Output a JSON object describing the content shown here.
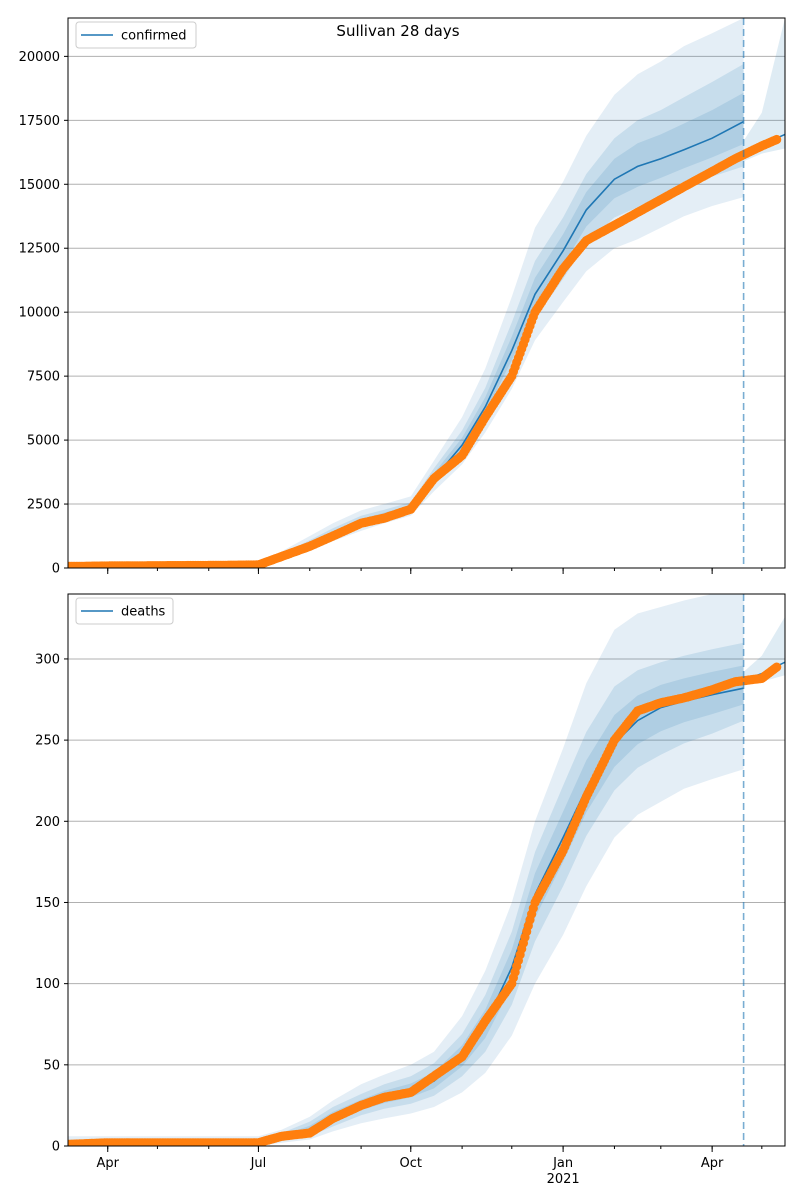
{
  "figure": {
    "title": "Sullivan 28 days"
  },
  "colors": {
    "model_line": "#1f77b4",
    "observed": "#ff7f0e",
    "band": "#1f77b4",
    "grid": "#b0b0b0",
    "forecast_marker": "#1f77b4"
  },
  "x_axis": {
    "tick_labels": [
      "Apr",
      "Jul",
      "Oct",
      "Jan",
      "Apr"
    ],
    "tick_dates": [
      "2020-04-01",
      "2020-07-01",
      "2020-10-01",
      "2021-01-01",
      "2021-04-01"
    ],
    "year_label": "2021",
    "range": [
      "2020-03-08",
      "2021-05-15"
    ],
    "forecast_date": "2021-04-20"
  },
  "chart_data": [
    {
      "type": "line",
      "legend": "confirmed",
      "legend_position": "top-left",
      "ylim": [
        0,
        21500
      ],
      "yticks": [
        0,
        2500,
        5000,
        7500,
        10000,
        12500,
        15000,
        17500,
        20000
      ],
      "grid": "horizontal",
      "model": {
        "name": "confirmed",
        "x": [
          "2020-03-08",
          "2020-04-01",
          "2020-05-01",
          "2020-06-01",
          "2020-07-01",
          "2020-07-15",
          "2020-08-01",
          "2020-08-15",
          "2020-09-01",
          "2020-09-15",
          "2020-10-01",
          "2020-10-15",
          "2020-11-01",
          "2020-11-15",
          "2020-12-01",
          "2020-12-15",
          "2021-01-01",
          "2021-01-15",
          "2021-02-01",
          "2021-02-15",
          "2021-03-01",
          "2021-03-15",
          "2021-04-01",
          "2021-04-20"
        ],
        "y": [
          80,
          80,
          90,
          100,
          130,
          450,
          900,
          1350,
          1800,
          2050,
          2350,
          3500,
          4800,
          6300,
          8500,
          10700,
          12400,
          14000,
          15200,
          15700,
          16000,
          16350,
          16800,
          17450
        ]
      },
      "bands": {
        "x": [
          "2020-03-08",
          "2020-07-01",
          "2020-07-15",
          "2020-08-01",
          "2020-08-15",
          "2020-09-01",
          "2020-09-15",
          "2020-10-01",
          "2020-10-15",
          "2020-11-01",
          "2020-11-15",
          "2020-12-01",
          "2020-12-15",
          "2021-01-01",
          "2021-01-15",
          "2021-02-01",
          "2021-02-15",
          "2021-03-01",
          "2021-03-15",
          "2021-04-01",
          "2021-04-20"
        ],
        "outer_low": [
          40,
          80,
          300,
          650,
          1050,
          1450,
          1750,
          2050,
          3000,
          4050,
          5300,
          7000,
          8900,
          10400,
          11600,
          12500,
          12850,
          13300,
          13750,
          14150,
          14500
        ],
        "outer_high": [
          140,
          190,
          650,
          1250,
          1750,
          2250,
          2500,
          2800,
          4200,
          5900,
          7800,
          10600,
          13300,
          15100,
          16900,
          18500,
          19300,
          19800,
          20400,
          20900,
          21500
        ],
        "inner_low": [
          60,
          110,
          380,
          790,
          1210,
          1630,
          1900,
          2200,
          3250,
          4420,
          5800,
          7750,
          9750,
          11300,
          12700,
          13700,
          14100,
          14500,
          14900,
          15300,
          15700
        ],
        "inner_high": [
          110,
          160,
          560,
          1090,
          1550,
          2040,
          2280,
          2570,
          3900,
          5380,
          7050,
          9600,
          12000,
          13700,
          15400,
          16800,
          17500,
          17900,
          18400,
          19000,
          19700
        ]
      },
      "post_forecast": {
        "x": [
          "2021-04-20",
          "2021-05-01",
          "2021-05-15"
        ],
        "y": [
          16250,
          16550,
          16950
        ],
        "low": [
          15900,
          16200,
          16400
        ],
        "high": [
          16700,
          17800,
          21500
        ]
      },
      "observed": {
        "name": "observed",
        "x": [
          "2020-03-08",
          "2020-04-01",
          "2020-05-01",
          "2020-06-01",
          "2020-07-01",
          "2020-07-15",
          "2020-08-01",
          "2020-08-15",
          "2020-09-01",
          "2020-09-15",
          "2020-10-01",
          "2020-10-15",
          "2020-11-01",
          "2020-11-15",
          "2020-12-01",
          "2020-12-15",
          "2021-01-01",
          "2021-01-15",
          "2021-02-01",
          "2021-02-15",
          "2021-03-01",
          "2021-03-15",
          "2021-04-01",
          "2021-04-15",
          "2021-05-01",
          "2021-05-10"
        ],
        "y": [
          60,
          80,
          90,
          100,
          120,
          450,
          850,
          1250,
          1750,
          1950,
          2300,
          3500,
          4400,
          5900,
          7500,
          10000,
          11700,
          12800,
          13400,
          13900,
          14400,
          14900,
          15500,
          16000,
          16500,
          16750
        ]
      }
    },
    {
      "type": "line",
      "legend": "deaths",
      "legend_position": "top-left",
      "ylim": [
        0,
        340
      ],
      "yticks": [
        0,
        50,
        100,
        150,
        200,
        250,
        300
      ],
      "grid": "horizontal",
      "model": {
        "name": "deaths",
        "x": [
          "2020-03-08",
          "2020-04-01",
          "2020-05-01",
          "2020-06-01",
          "2020-07-01",
          "2020-07-15",
          "2020-08-01",
          "2020-08-15",
          "2020-09-01",
          "2020-09-15",
          "2020-10-01",
          "2020-10-15",
          "2020-11-01",
          "2020-11-15",
          "2020-12-01",
          "2020-12-15",
          "2021-01-01",
          "2021-01-15",
          "2021-02-01",
          "2021-02-15",
          "2021-03-01",
          "2021-03-15",
          "2021-04-01",
          "2021-04-20"
        ],
        "y": [
          2,
          2,
          2,
          2,
          3,
          5,
          10,
          18,
          25,
          30,
          34,
          40,
          55,
          75,
          110,
          155,
          190,
          220,
          248,
          262,
          270,
          274,
          278,
          282
        ]
      },
      "bands": {
        "x": [
          "2020-03-08",
          "2020-07-01",
          "2020-07-15",
          "2020-08-01",
          "2020-08-15",
          "2020-09-01",
          "2020-09-15",
          "2020-10-01",
          "2020-10-15",
          "2020-11-01",
          "2020-11-15",
          "2020-12-01",
          "2020-12-15",
          "2021-01-01",
          "2021-01-15",
          "2021-02-01",
          "2021-02-15",
          "2021-03-01",
          "2021-03-15",
          "2021-04-01",
          "2021-04-20"
        ],
        "outer_low": [
          0,
          0,
          2,
          4,
          9,
          14,
          17,
          20,
          24,
          33,
          45,
          68,
          100,
          130,
          160,
          190,
          204,
          212,
          220,
          226,
          232
        ],
        "outer_high": [
          6,
          6,
          10,
          18,
          28,
          38,
          44,
          50,
          58,
          80,
          108,
          150,
          200,
          245,
          285,
          318,
          328,
          332,
          336,
          340,
          340
        ],
        "inner_low": [
          1,
          1,
          3,
          6,
          12,
          19,
          23,
          26,
          31,
          43,
          58,
          87,
          126,
          160,
          191,
          219,
          233,
          241,
          248,
          254,
          262
        ],
        "inner_high": [
          4,
          4,
          8,
          15,
          24,
          32,
          38,
          43,
          51,
          69,
          93,
          132,
          181,
          222,
          255,
          283,
          293,
          298,
          302,
          306,
          310
        ]
      },
      "post_forecast": {
        "x": [
          "2021-04-20",
          "2021-05-01",
          "2021-05-15"
        ],
        "y": [
          287,
          291,
          298
        ],
        "low": [
          284,
          286,
          290
        ],
        "high": [
          292,
          302,
          326
        ]
      },
      "observed": {
        "name": "observed",
        "x": [
          "2020-03-08",
          "2020-04-01",
          "2020-05-01",
          "2020-06-01",
          "2020-07-01",
          "2020-07-15",
          "2020-08-01",
          "2020-08-15",
          "2020-09-01",
          "2020-09-15",
          "2020-10-01",
          "2020-10-15",
          "2020-11-01",
          "2020-11-15",
          "2020-12-01",
          "2020-12-15",
          "2021-01-01",
          "2021-01-15",
          "2021-02-01",
          "2021-02-15",
          "2021-03-01",
          "2021-03-15",
          "2021-04-01",
          "2021-04-15",
          "2021-05-01",
          "2021-05-10"
        ],
        "y": [
          1,
          2,
          2,
          2,
          2,
          6,
          8,
          17,
          25,
          30,
          33,
          43,
          55,
          77,
          100,
          150,
          182,
          215,
          250,
          268,
          273,
          276,
          281,
          286,
          288,
          295
        ]
      }
    }
  ]
}
